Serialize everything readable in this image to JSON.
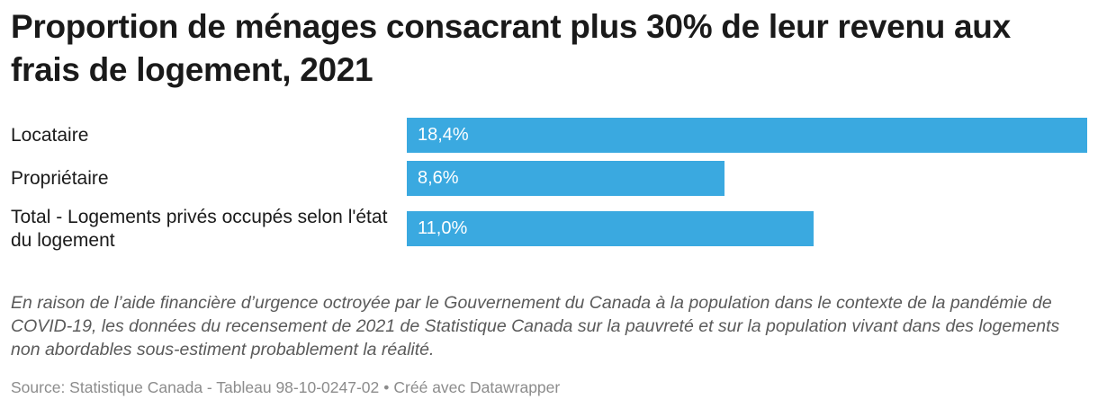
{
  "chart_data": {
    "type": "bar",
    "orientation": "horizontal",
    "title": "Proportion de ménages consacrant plus 30% de leur revenu aux frais de logement, 2021",
    "categories": [
      "Locataire",
      "Propriétaire",
      "Total - Logements privés occupés selon l'état du logement"
    ],
    "values": [
      18.4,
      8.6,
      11.0
    ],
    "value_labels": [
      "18,4%",
      "8,6%",
      "11,0%"
    ],
    "unit": "%",
    "xlim": [
      0,
      18.4
    ],
    "grid": false,
    "legend": "none",
    "bar_color": "#3aa9e0",
    "note": "En raison de l’aide financière d’urgence octroyée par le Gouvernement du Canada à la population dans le contexte de la pandémie de COVID-19, les données du recensement de 2021 de Statistique Canada sur la pauvreté et sur la population vivant dans des logements non abordables sous-estiment probablement la réalité.",
    "source": "Source: Statistique Canada - Tableau 98-10-0247-02",
    "credit": "Créé avec Datawrapper"
  }
}
